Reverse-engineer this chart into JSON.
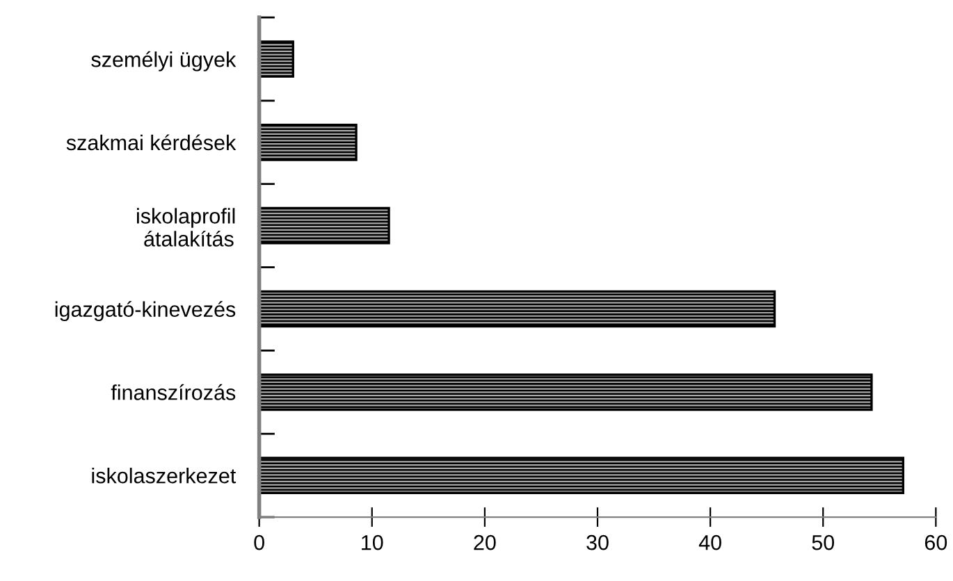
{
  "chart_data": {
    "type": "bar",
    "orientation": "horizontal",
    "categories": [
      "személyi ügyek",
      "szakmai kérdések",
      "iskolaprofil\n átalakítás",
      "igazgató-kinevezés",
      "finanszírozás",
      "iskolaszerkezet"
    ],
    "values": [
      3,
      8.6,
      11.5,
      45.7,
      54.3,
      57.1
    ],
    "color": "#000000",
    "xlim": [
      0,
      60
    ],
    "xticks": [
      0,
      10,
      20,
      30,
      40,
      50,
      60
    ],
    "grid": false,
    "legend": false
  }
}
